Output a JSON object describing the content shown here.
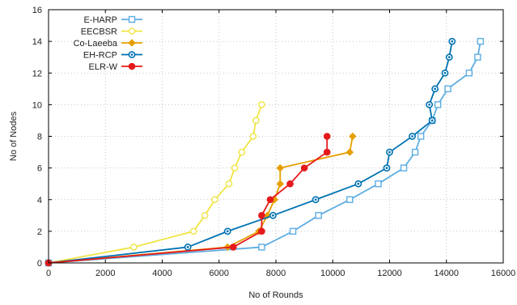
{
  "chart_data": {
    "type": "line",
    "xlabel": "No of Rounds",
    "ylabel": "No of Nodes",
    "xlim": [
      0,
      16000
    ],
    "ylim": [
      0,
      16
    ],
    "xticks": [
      "0",
      "2000",
      "4000",
      "6000",
      "8000",
      "10000",
      "12000",
      "14000",
      "16000"
    ],
    "yticks": [
      "0",
      "2",
      "4",
      "6",
      "8",
      "10",
      "12",
      "14",
      "16"
    ],
    "grid": true,
    "legend_position": "top-left",
    "series": [
      {
        "name": "E-HARP",
        "color": "#5dade2",
        "marker": "square-hollow",
        "points": [
          [
            0,
            0
          ],
          [
            7500,
            1
          ],
          [
            8600,
            2
          ],
          [
            9500,
            3
          ],
          [
            10600,
            4
          ],
          [
            11600,
            5
          ],
          [
            12500,
            6
          ],
          [
            12900,
            7
          ],
          [
            13100,
            8
          ],
          [
            13500,
            9
          ],
          [
            13700,
            10
          ],
          [
            14050,
            11
          ],
          [
            14800,
            12
          ],
          [
            15100,
            13
          ],
          [
            15200,
            14
          ]
        ]
      },
      {
        "name": "EECBSR",
        "color": "#f0e442",
        "marker": "circle-hollow",
        "points": [
          [
            0,
            0
          ],
          [
            3000,
            1
          ],
          [
            5100,
            2
          ],
          [
            5500,
            3
          ],
          [
            5850,
            4
          ],
          [
            6350,
            5
          ],
          [
            6550,
            6
          ],
          [
            6800,
            7
          ],
          [
            7200,
            8
          ],
          [
            7300,
            9
          ],
          [
            7500,
            10
          ]
        ]
      },
      {
        "name": "Co-Laeeba",
        "color": "#e69f00",
        "marker": "diamond",
        "points": [
          [
            0,
            0
          ],
          [
            6300,
            1
          ],
          [
            7400,
            2
          ],
          [
            7700,
            3
          ],
          [
            7950,
            4
          ],
          [
            8150,
            5
          ],
          [
            8150,
            6
          ],
          [
            10600,
            7
          ],
          [
            10700,
            8
          ]
        ]
      },
      {
        "name": "EH-RCP",
        "color": "#0072b2",
        "marker": "circle-dot",
        "points": [
          [
            0,
            0
          ],
          [
            4900,
            1
          ],
          [
            6300,
            2
          ],
          [
            7900,
            3
          ],
          [
            9400,
            4
          ],
          [
            10900,
            5
          ],
          [
            11900,
            6
          ],
          [
            12000,
            7
          ],
          [
            12800,
            8
          ],
          [
            13500,
            9
          ],
          [
            13400,
            10
          ],
          [
            13600,
            11
          ],
          [
            13950,
            12
          ],
          [
            14100,
            13
          ],
          [
            14200,
            14
          ]
        ]
      },
      {
        "name": "ELR-W",
        "color": "#e41a1c",
        "marker": "circle",
        "points": [
          [
            0,
            0
          ],
          [
            6500,
            1
          ],
          [
            7500,
            2
          ],
          [
            7500,
            3
          ],
          [
            7800,
            4
          ],
          [
            8500,
            5
          ],
          [
            9000,
            6
          ],
          [
            9800,
            7
          ],
          [
            9800,
            8
          ]
        ]
      }
    ]
  }
}
